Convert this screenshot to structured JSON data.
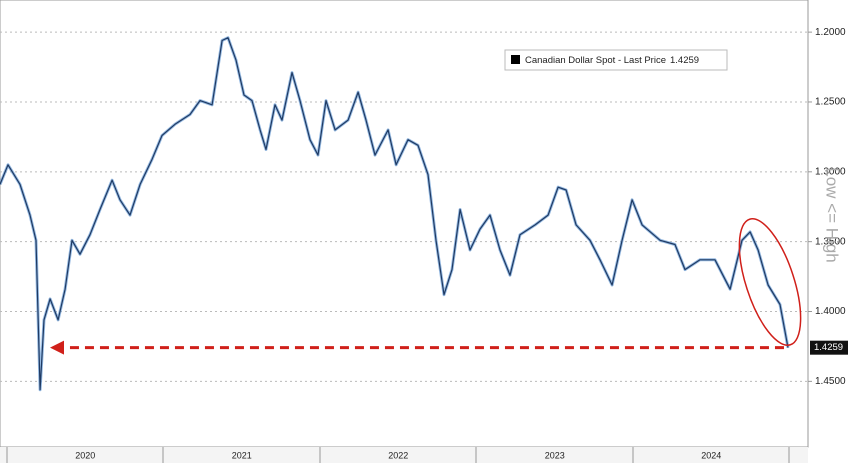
{
  "chart_data": {
    "type": "line",
    "side_label": "Low <= High",
    "y_inverted": true,
    "grid": true,
    "legend": "upper right",
    "xlim": [
      2019.955,
      2025.118
    ],
    "ylim": [
      1.177,
      1.497
    ],
    "xticks": [
      {
        "value": 2020.5,
        "label": "2020"
      },
      {
        "value": 2021.5,
        "label": "2021"
      },
      {
        "value": 2022.5,
        "label": "2022"
      },
      {
        "value": 2023.5,
        "label": "2023"
      },
      {
        "value": 2024.5,
        "label": "2024"
      }
    ],
    "yticks": [
      {
        "value": 1.2,
        "label": "1.2000"
      },
      {
        "value": 1.25,
        "label": "1.2500"
      },
      {
        "value": 1.3,
        "label": "1.3000"
      },
      {
        "value": 1.35,
        "label": "1.3500"
      },
      {
        "value": 1.4,
        "label": "1.4000"
      },
      {
        "value": 1.45,
        "label": "1.4500"
      }
    ],
    "x": [
      2019.955,
      2020.006,
      2020.083,
      2020.147,
      2020.185,
      2020.211,
      2020.236,
      2020.275,
      2020.326,
      2020.371,
      2020.415,
      2020.466,
      2020.53,
      2020.594,
      2020.671,
      2020.722,
      2020.786,
      2020.85,
      2020.927,
      2020.99,
      2021.073,
      2021.169,
      2021.233,
      2021.31,
      2021.374,
      2021.412,
      2021.463,
      2021.514,
      2021.565,
      2021.617,
      2021.655,
      2021.712,
      2021.757,
      2021.821,
      2021.872,
      2021.936,
      2021.987,
      2022.038,
      2022.096,
      2022.179,
      2022.243,
      2022.294,
      2022.351,
      2022.435,
      2022.486,
      2022.562,
      2022.626,
      2022.69,
      2022.741,
      2022.792,
      2022.843,
      2022.895,
      2022.958,
      2023.022,
      2023.086,
      2023.15,
      2023.214,
      2023.278,
      2023.374,
      2023.457,
      2023.521,
      2023.572,
      2023.636,
      2023.725,
      2023.789,
      2023.866,
      2023.93,
      2023.994,
      2024.058,
      2024.173,
      2024.268,
      2024.332,
      2024.428,
      2024.524,
      2024.62,
      2024.696,
      2024.748,
      2024.799,
      2024.863,
      2024.939,
      2024.99
    ],
    "series": [
      {
        "name": "Canadian Dollar Spot - Last Price",
        "color": "#1f3a63",
        "values": [
          1.309,
          1.295,
          1.309,
          1.331,
          1.349,
          1.456,
          1.406,
          1.391,
          1.406,
          1.384,
          1.349,
          1.359,
          1.345,
          1.327,
          1.306,
          1.32,
          1.331,
          1.309,
          1.291,
          1.274,
          1.266,
          1.259,
          1.249,
          1.252,
          1.206,
          1.204,
          1.22,
          1.245,
          1.249,
          1.27,
          1.284,
          1.252,
          1.263,
          1.229,
          1.249,
          1.277,
          1.288,
          1.249,
          1.27,
          1.263,
          1.243,
          1.263,
          1.288,
          1.27,
          1.295,
          1.277,
          1.281,
          1.302,
          1.349,
          1.388,
          1.37,
          1.327,
          1.356,
          1.341,
          1.331,
          1.356,
          1.374,
          1.345,
          1.338,
          1.331,
          1.311,
          1.313,
          1.338,
          1.349,
          1.363,
          1.381,
          1.349,
          1.32,
          1.338,
          1.349,
          1.352,
          1.37,
          1.363,
          1.363,
          1.384,
          1.349,
          1.343,
          1.356,
          1.381,
          1.395,
          1.4259
        ]
      }
    ]
  }
}
